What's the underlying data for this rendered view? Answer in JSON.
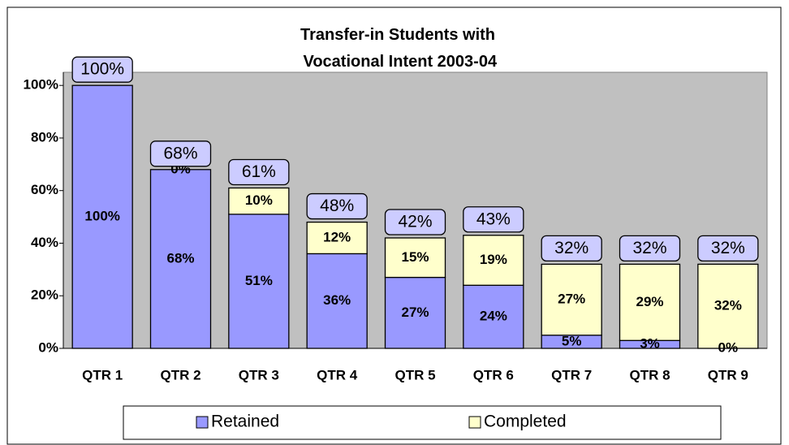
{
  "chart_data": {
    "type": "stacked_bar",
    "title": "Transfer-in Students with Vocational Intent 2003-04",
    "categories": [
      "QTR 1",
      "QTR 2",
      "QTR 3",
      "QTR 4",
      "QTR 5",
      "QTR 6",
      "QTR 7",
      "QTR 8",
      "QTR 9"
    ],
    "series": [
      {
        "name": "Retained",
        "color": "#9999ff",
        "values": [
          100,
          68,
          51,
          36,
          27,
          24,
          5,
          3,
          0
        ],
        "value_labels": [
          "100%",
          "68%",
          "51%",
          "36%",
          "27%",
          "24%",
          "5%",
          "3%",
          "0%"
        ]
      },
      {
        "name": "Completed",
        "color": "#ffffcc",
        "values": [
          null,
          0,
          10,
          12,
          15,
          19,
          27,
          29,
          32
        ],
        "value_labels": [
          null,
          "0%",
          "10%",
          "12%",
          "15%",
          "19%",
          "27%",
          "29%",
          "32%"
        ]
      }
    ],
    "totals": {
      "values": [
        100,
        68,
        61,
        48,
        42,
        43,
        32,
        32,
        32
      ],
      "value_labels": [
        "100%",
        "68%",
        "61%",
        "48%",
        "42%",
        "43%",
        "32%",
        "32%",
        "32%"
      ]
    },
    "ylim": [
      0,
      105
    ],
    "yticks": [
      {
        "value": 0,
        "label": "0%"
      },
      {
        "value": 20,
        "label": "20%"
      },
      {
        "value": 40,
        "label": "40%"
      },
      {
        "value": 60,
        "label": "60%"
      },
      {
        "value": 80,
        "label": "80%"
      },
      {
        "value": 100,
        "label": "100%"
      }
    ],
    "plot_background": "#c0c0c0",
    "legend": "bottom"
  }
}
